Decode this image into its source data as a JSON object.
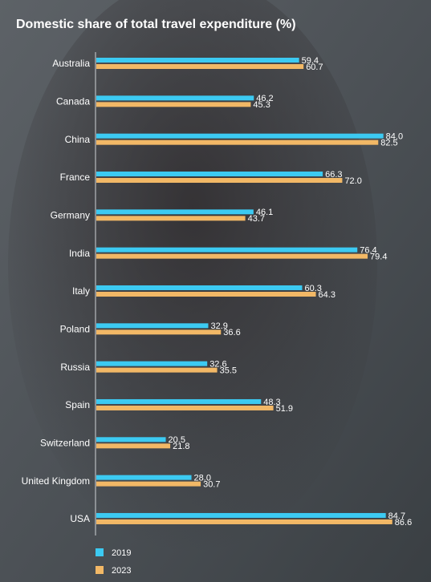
{
  "chart_data": {
    "type": "bar",
    "orientation": "horizontal",
    "title": "Domestic share of total travel expenditure (%)",
    "categories": [
      "Australia",
      "Canada",
      "China",
      "France",
      "Germany",
      "India",
      "Italy",
      "Poland",
      "Russia",
      "Spain",
      "Switzerland",
      "United Kingdom",
      "USA"
    ],
    "series": [
      {
        "name": "2019",
        "color": "#3ccaf2",
        "values": [
          59.4,
          46.2,
          84.0,
          66.3,
          46.1,
          76.4,
          60.3,
          32.9,
          32.6,
          48.3,
          20.5,
          28.0,
          84.7
        ],
        "value_labels": [
          "59.4",
          "46.2",
          "84.0",
          "66.3",
          "46.1",
          "76.4",
          "60.3",
          "32.9",
          "32.6",
          "48.3",
          "20.5",
          "28.0",
          "84.7"
        ]
      },
      {
        "name": "2023",
        "color": "#f2b866",
        "values": [
          60.7,
          45.3,
          82.5,
          72.0,
          43.7,
          79.4,
          64.3,
          36.6,
          35.5,
          51.9,
          21.8,
          30.7,
          86.6
        ],
        "value_labels": [
          "60.7",
          "45.3",
          "82.5",
          "72.0",
          "43.7",
          "79.4",
          "64.3",
          "36.6",
          "35.5",
          "51.9",
          "21.8",
          "30.7",
          "86.6"
        ]
      }
    ],
    "legend": "bottom-left"
  }
}
